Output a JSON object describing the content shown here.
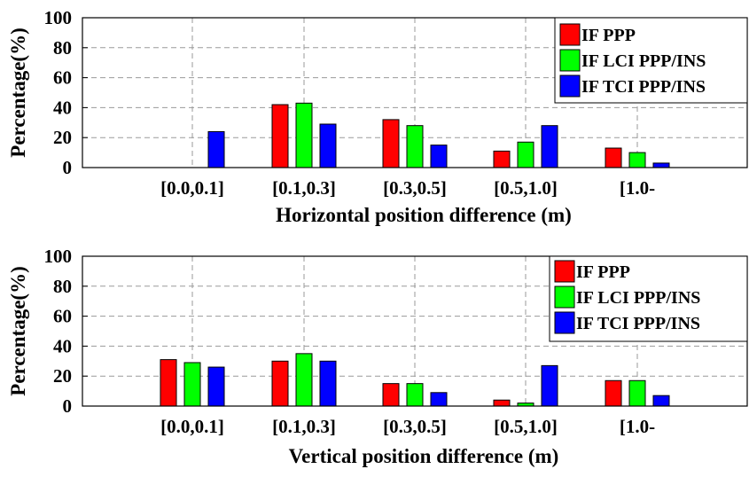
{
  "chart_data": [
    {
      "type": "bar",
      "title": "",
      "xlabel": "Horizontal position difference (m)",
      "ylabel": "Percentage(%)",
      "ylim": [
        0,
        100
      ],
      "yticks": [
        "0",
        "20",
        "40",
        "60",
        "80",
        "100"
      ],
      "grid": true,
      "legend_position": "top-right",
      "categories": [
        "[0.0,0.1]",
        "[0.1,0.3]",
        "[0.3,0.5]",
        "[0.5,1.0]",
        "[1.0-"
      ],
      "series": [
        {
          "name": "IF PPP",
          "color": "#ff0000",
          "values": [
            0,
            42,
            32,
            11,
            13
          ]
        },
        {
          "name": "IF LCI PPP/INS",
          "color": "#00ff00",
          "values": [
            0,
            43,
            28,
            17,
            10
          ]
        },
        {
          "name": "IF TCI PPP/INS",
          "color": "#0000ff",
          "values": [
            24,
            29,
            15,
            28,
            3
          ]
        }
      ]
    },
    {
      "type": "bar",
      "title": "",
      "xlabel": "Vertical position difference (m)",
      "ylabel": "Percentage(%)",
      "ylim": [
        0,
        100
      ],
      "yticks": [
        "0",
        "20",
        "40",
        "60",
        "80",
        "100"
      ],
      "grid": true,
      "legend_position": "top-right",
      "categories": [
        "[0.0,0.1]",
        "[0.1,0.3]",
        "[0.3,0.5]",
        "[0.5,1.0]",
        "[1.0-"
      ],
      "series": [
        {
          "name": "IF PPP",
          "color": "#ff0000",
          "values": [
            31,
            30,
            15,
            4,
            17
          ]
        },
        {
          "name": "IF LCI PPP/INS",
          "color": "#00ff00",
          "values": [
            29,
            35,
            15,
            2,
            17
          ]
        },
        {
          "name": "IF TCI PPP/INS",
          "color": "#0000ff",
          "values": [
            26,
            30,
            9,
            27,
            7
          ]
        }
      ]
    }
  ]
}
